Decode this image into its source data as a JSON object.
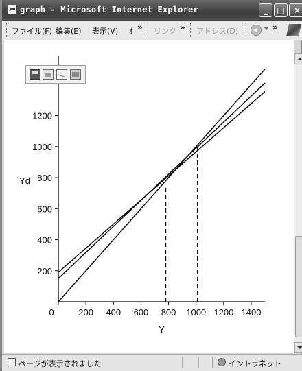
{
  "window": {
    "title": "graph - Microsoft Internet Explorer"
  },
  "menu": {
    "items": [
      "ファイル(F)",
      "編集(E)",
      "表示(V)",
      "ｵ"
    ],
    "links_label": "リンク",
    "address_label": "アドレス(D)",
    "chevron": "»"
  },
  "status": {
    "text": "ページが表示されました",
    "zone": "イントラネット"
  },
  "icons": {
    "app": "ie-page-icon",
    "toolbar": [
      "save-icon",
      "print-icon",
      "mail-icon",
      "folder-icon"
    ],
    "back": "back-arrow-icon",
    "logo": "windows-logo-icon"
  },
  "chart_data": {
    "type": "line",
    "xlabel": "Y",
    "ylabel": "Yd",
    "xlim": [
      0,
      1500
    ],
    "ylim": [
      0,
      1400
    ],
    "x_ticks": [
      0,
      200,
      400,
      600,
      800,
      1000,
      1200,
      1400
    ],
    "y_ticks": [
      200,
      400,
      600,
      800,
      1000,
      1200
    ],
    "series": [
      {
        "x": [
          0,
          1500
        ],
        "y": [
          0,
          1500
        ]
      },
      {
        "x": [
          0,
          1500
        ],
        "y": [
          150,
          1410
        ]
      },
      {
        "x": [
          0,
          1500
        ],
        "y": [
          190,
          1355
        ]
      }
    ],
    "annotations": [
      {
        "type": "dashed-vertical",
        "x": 780,
        "y_top": 740
      },
      {
        "type": "dashed-vertical",
        "x": 1010,
        "y_top": 1010
      }
    ],
    "grid": false
  }
}
